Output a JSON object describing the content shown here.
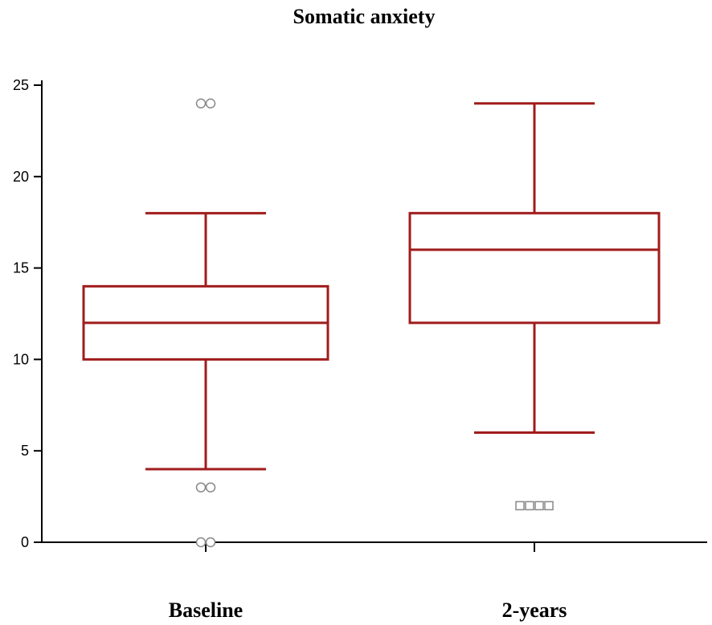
{
  "chart_data": {
    "type": "box",
    "title": "Somatic anxiety",
    "xlabel": "",
    "ylabel": "",
    "ylim": [
      0,
      25
    ],
    "yticks": [
      0,
      5,
      10,
      15,
      20,
      25
    ],
    "grid": false,
    "colors": {
      "box": "#a01c1c",
      "axis": "#000000",
      "outlier": "#888888"
    },
    "categories": [
      "Baseline",
      "2-years"
    ],
    "boxes": [
      {
        "category": "Baseline",
        "whisker_low": 4,
        "q1": 10,
        "median": 12,
        "q3": 14,
        "whisker_high": 18,
        "outliers": [
          {
            "value": 24,
            "count": 2,
            "marker": "circle"
          },
          {
            "value": 3,
            "count": 2,
            "marker": "circle"
          },
          {
            "value": 0,
            "count": 2,
            "marker": "circle"
          }
        ]
      },
      {
        "category": "2-years",
        "whisker_low": 6,
        "q1": 12,
        "median": 16,
        "q3": 18,
        "whisker_high": 24,
        "outliers": [
          {
            "value": 2,
            "count": 4,
            "marker": "square"
          }
        ]
      }
    ]
  }
}
